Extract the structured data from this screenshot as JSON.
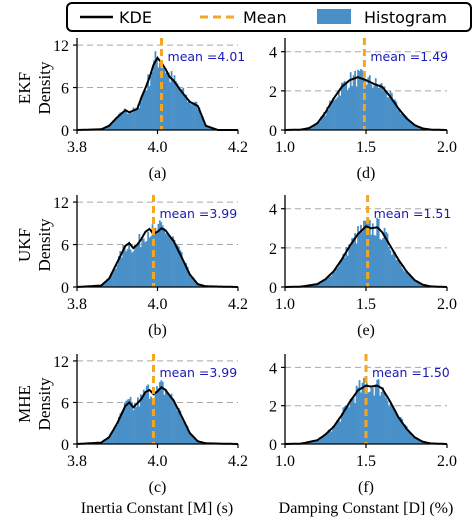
{
  "legend": {
    "items": [
      {
        "label": "KDE",
        "style": "line",
        "color": "#000000"
      },
      {
        "label": "Mean",
        "style": "dashed",
        "color": "#f5a623"
      },
      {
        "label": "Histogram",
        "style": "patch",
        "color": "#4a90c8"
      }
    ]
  },
  "colors": {
    "histogram": "#4a90c8",
    "kde": "#000000",
    "mean": "#f5a623",
    "grid": "#a8a8a8",
    "annotation": "#1a1ab4"
  },
  "row_labels": [
    {
      "method": "EKF",
      "ylabel": "Density"
    },
    {
      "method": "UKF",
      "ylabel": "Density"
    },
    {
      "method": "MHE",
      "ylabel": "Density"
    }
  ],
  "column_xlabels": [
    "Inertia Constant [M] (s)",
    "Damping Constant [D] (%)"
  ],
  "chart_data": [
    {
      "type": "area",
      "panel": "(a)",
      "method": "EKF",
      "parameter": "M",
      "xlim": [
        3.8,
        4.2
      ],
      "ylim": [
        0,
        13
      ],
      "xticks": [
        "3.8",
        "4.0",
        "4.2"
      ],
      "xtick_values": [
        3.8,
        4.0,
        4.2
      ],
      "yticks": [
        "0",
        "6",
        "12"
      ],
      "ytick_values": [
        0,
        6,
        12
      ],
      "grid_y": true,
      "mean": 4.01,
      "annotation": "mean =4.01",
      "kde_x": [
        3.8,
        3.86,
        3.88,
        3.9,
        3.92,
        3.93,
        3.95,
        3.96,
        3.97,
        3.98,
        3.99,
        4.0,
        4.01,
        4.02,
        4.03,
        4.04,
        4.05,
        4.06,
        4.08,
        4.1,
        4.12,
        4.15,
        4.2
      ],
      "kde_y": [
        0,
        0.1,
        0.6,
        1.8,
        2.8,
        2.5,
        3.0,
        4.6,
        5.9,
        7.4,
        9.2,
        10.2,
        9.5,
        8.6,
        7.5,
        7.0,
        6.2,
        5.4,
        4.0,
        3.4,
        0.6,
        0,
        0
      ]
    },
    {
      "type": "area",
      "panel": "(d)",
      "method": "EKF",
      "parameter": "D",
      "xlim": [
        1.0,
        2.0
      ],
      "ylim": [
        0,
        4.7
      ],
      "xticks": [
        "1.0",
        "1.5",
        "2.0"
      ],
      "xtick_values": [
        1.0,
        1.5,
        2.0
      ],
      "yticks": [
        "0",
        "2",
        "4"
      ],
      "ytick_values": [
        0,
        2,
        4
      ],
      "grid_y": true,
      "mean": 1.49,
      "annotation": "mean =1.49",
      "kde_x": [
        1.0,
        1.1,
        1.15,
        1.2,
        1.25,
        1.3,
        1.35,
        1.4,
        1.45,
        1.5,
        1.55,
        1.6,
        1.65,
        1.7,
        1.75,
        1.8,
        1.85,
        1.9,
        2.0
      ],
      "kde_y": [
        0,
        0.02,
        0.1,
        0.35,
        0.9,
        1.6,
        2.2,
        2.55,
        2.7,
        2.55,
        2.35,
        2.2,
        1.7,
        1.1,
        0.6,
        0.25,
        0.08,
        0.02,
        0
      ]
    },
    {
      "type": "area",
      "panel": "(b)",
      "method": "UKF",
      "parameter": "M",
      "xlim": [
        3.8,
        4.2
      ],
      "ylim": [
        0,
        13
      ],
      "xticks": [
        "3.8",
        "4.0",
        "4.2"
      ],
      "xtick_values": [
        3.8,
        4.0,
        4.2
      ],
      "yticks": [
        "0",
        "6",
        "12"
      ],
      "ytick_values": [
        0,
        6,
        12
      ],
      "grid_y": true,
      "mean": 3.99,
      "annotation": "mean =3.99",
      "kde_x": [
        3.8,
        3.86,
        3.88,
        3.9,
        3.92,
        3.93,
        3.94,
        3.95,
        3.96,
        3.97,
        3.98,
        3.99,
        4.0,
        4.01,
        4.02,
        4.03,
        4.04,
        4.06,
        4.08,
        4.1,
        4.12,
        4.2
      ],
      "kde_y": [
        0,
        0.2,
        1.2,
        3.5,
        5.8,
        6.2,
        5.5,
        6.0,
        6.8,
        7.8,
        8.2,
        7.5,
        7.8,
        8.3,
        8.0,
        7.2,
        6.5,
        4.2,
        1.8,
        0.4,
        0.1,
        0
      ]
    },
    {
      "type": "area",
      "panel": "(e)",
      "method": "UKF",
      "parameter": "D",
      "xlim": [
        1.0,
        2.0
      ],
      "ylim": [
        0,
        4.7
      ],
      "xticks": [
        "1.0",
        "1.5",
        "2.0"
      ],
      "xtick_values": [
        1.0,
        1.5,
        2.0
      ],
      "yticks": [
        "0",
        "2",
        "4"
      ],
      "ytick_values": [
        0,
        2,
        4
      ],
      "grid_y": true,
      "mean": 1.51,
      "annotation": "mean =1.51",
      "kde_x": [
        1.0,
        1.1,
        1.2,
        1.25,
        1.3,
        1.35,
        1.4,
        1.45,
        1.5,
        1.53,
        1.57,
        1.6,
        1.65,
        1.7,
        1.75,
        1.8,
        1.85,
        1.9,
        2.0
      ],
      "kde_y": [
        0,
        0.02,
        0.15,
        0.4,
        0.8,
        1.4,
        2.1,
        2.7,
        3.1,
        3.0,
        3.05,
        2.8,
        2.1,
        1.4,
        0.8,
        0.35,
        0.12,
        0.03,
        0
      ]
    },
    {
      "type": "area",
      "panel": "(c)",
      "method": "MHE",
      "parameter": "M",
      "xlim": [
        3.8,
        4.2
      ],
      "ylim": [
        0,
        13
      ],
      "xticks": [
        "3.8",
        "4.0",
        "4.2"
      ],
      "xtick_values": [
        3.8,
        4.0,
        4.2
      ],
      "yticks": [
        "0",
        "6",
        "12"
      ],
      "ytick_values": [
        0,
        6,
        12
      ],
      "grid_y": true,
      "mean": 3.99,
      "annotation": "mean =3.99",
      "kde_x": [
        3.8,
        3.86,
        3.88,
        3.9,
        3.92,
        3.93,
        3.94,
        3.95,
        3.96,
        3.97,
        3.98,
        3.99,
        4.0,
        4.01,
        4.02,
        4.03,
        4.04,
        4.06,
        4.08,
        4.1,
        4.12,
        4.2
      ],
      "kde_y": [
        0,
        0.2,
        1.0,
        3.0,
        5.5,
        6.0,
        5.3,
        5.9,
        6.5,
        7.5,
        7.8,
        7.2,
        7.6,
        8.2,
        7.8,
        7.0,
        6.3,
        4.0,
        1.6,
        0.4,
        0.1,
        0
      ]
    },
    {
      "type": "area",
      "panel": "(f)",
      "method": "MHE",
      "parameter": "D",
      "xlim": [
        1.0,
        2.0
      ],
      "ylim": [
        0,
        4.7
      ],
      "xticks": [
        "1.0",
        "1.5",
        "2.0"
      ],
      "xtick_values": [
        1.0,
        1.5,
        2.0
      ],
      "yticks": [
        "0",
        "2",
        "4"
      ],
      "ytick_values": [
        0,
        2,
        4
      ],
      "grid_y": true,
      "mean": 1.5,
      "annotation": "mean =1.50",
      "kde_x": [
        1.0,
        1.1,
        1.2,
        1.25,
        1.3,
        1.35,
        1.4,
        1.45,
        1.5,
        1.53,
        1.57,
        1.6,
        1.65,
        1.7,
        1.75,
        1.8,
        1.85,
        1.9,
        2.0
      ],
      "kde_y": [
        0,
        0.02,
        0.2,
        0.5,
        0.9,
        1.5,
        2.2,
        2.8,
        3.05,
        3.0,
        3.05,
        2.9,
        2.2,
        1.4,
        0.8,
        0.35,
        0.12,
        0.03,
        0
      ]
    }
  ]
}
